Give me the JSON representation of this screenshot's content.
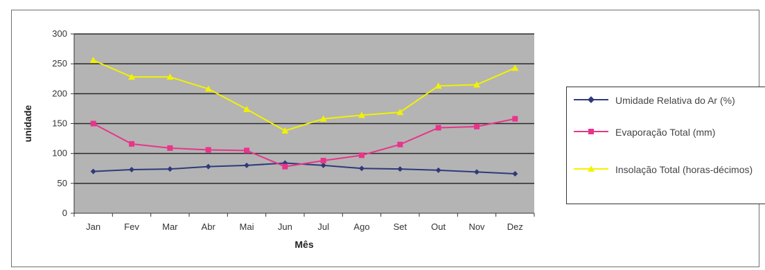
{
  "chart_data": {
    "type": "line",
    "categories": [
      "Jan",
      "Fev",
      "Mar",
      "Abr",
      "Mai",
      "Jun",
      "Jul",
      "Ago",
      "Set",
      "Out",
      "Nov",
      "Dez"
    ],
    "series": [
      {
        "name": "Umidade Relativa do Ar (%)",
        "color": "#2e3a7a",
        "marker": "diamond",
        "values": [
          70,
          73,
          74,
          78,
          80,
          84,
          80,
          75,
          74,
          72,
          69,
          66
        ]
      },
      {
        "name": "Evaporação Total (mm)",
        "color": "#e8358a",
        "marker": "square",
        "values": [
          150,
          116,
          109,
          106,
          105,
          78,
          88,
          97,
          115,
          143,
          145,
          158
        ]
      },
      {
        "name": "Insolação Total (horas-décimos)",
        "color": "#f2f200",
        "marker": "triangle",
        "values": [
          256,
          228,
          228,
          208,
          174,
          138,
          158,
          164,
          169,
          213,
          215,
          243
        ]
      }
    ],
    "xlabel": "Mês",
    "ylabel": "unidade",
    "ylim": [
      0,
      300
    ],
    "yticks": [
      0,
      50,
      100,
      150,
      200,
      250,
      300
    ],
    "grid": true,
    "plot_background": "#b4b4b4",
    "legend_position": "right"
  }
}
